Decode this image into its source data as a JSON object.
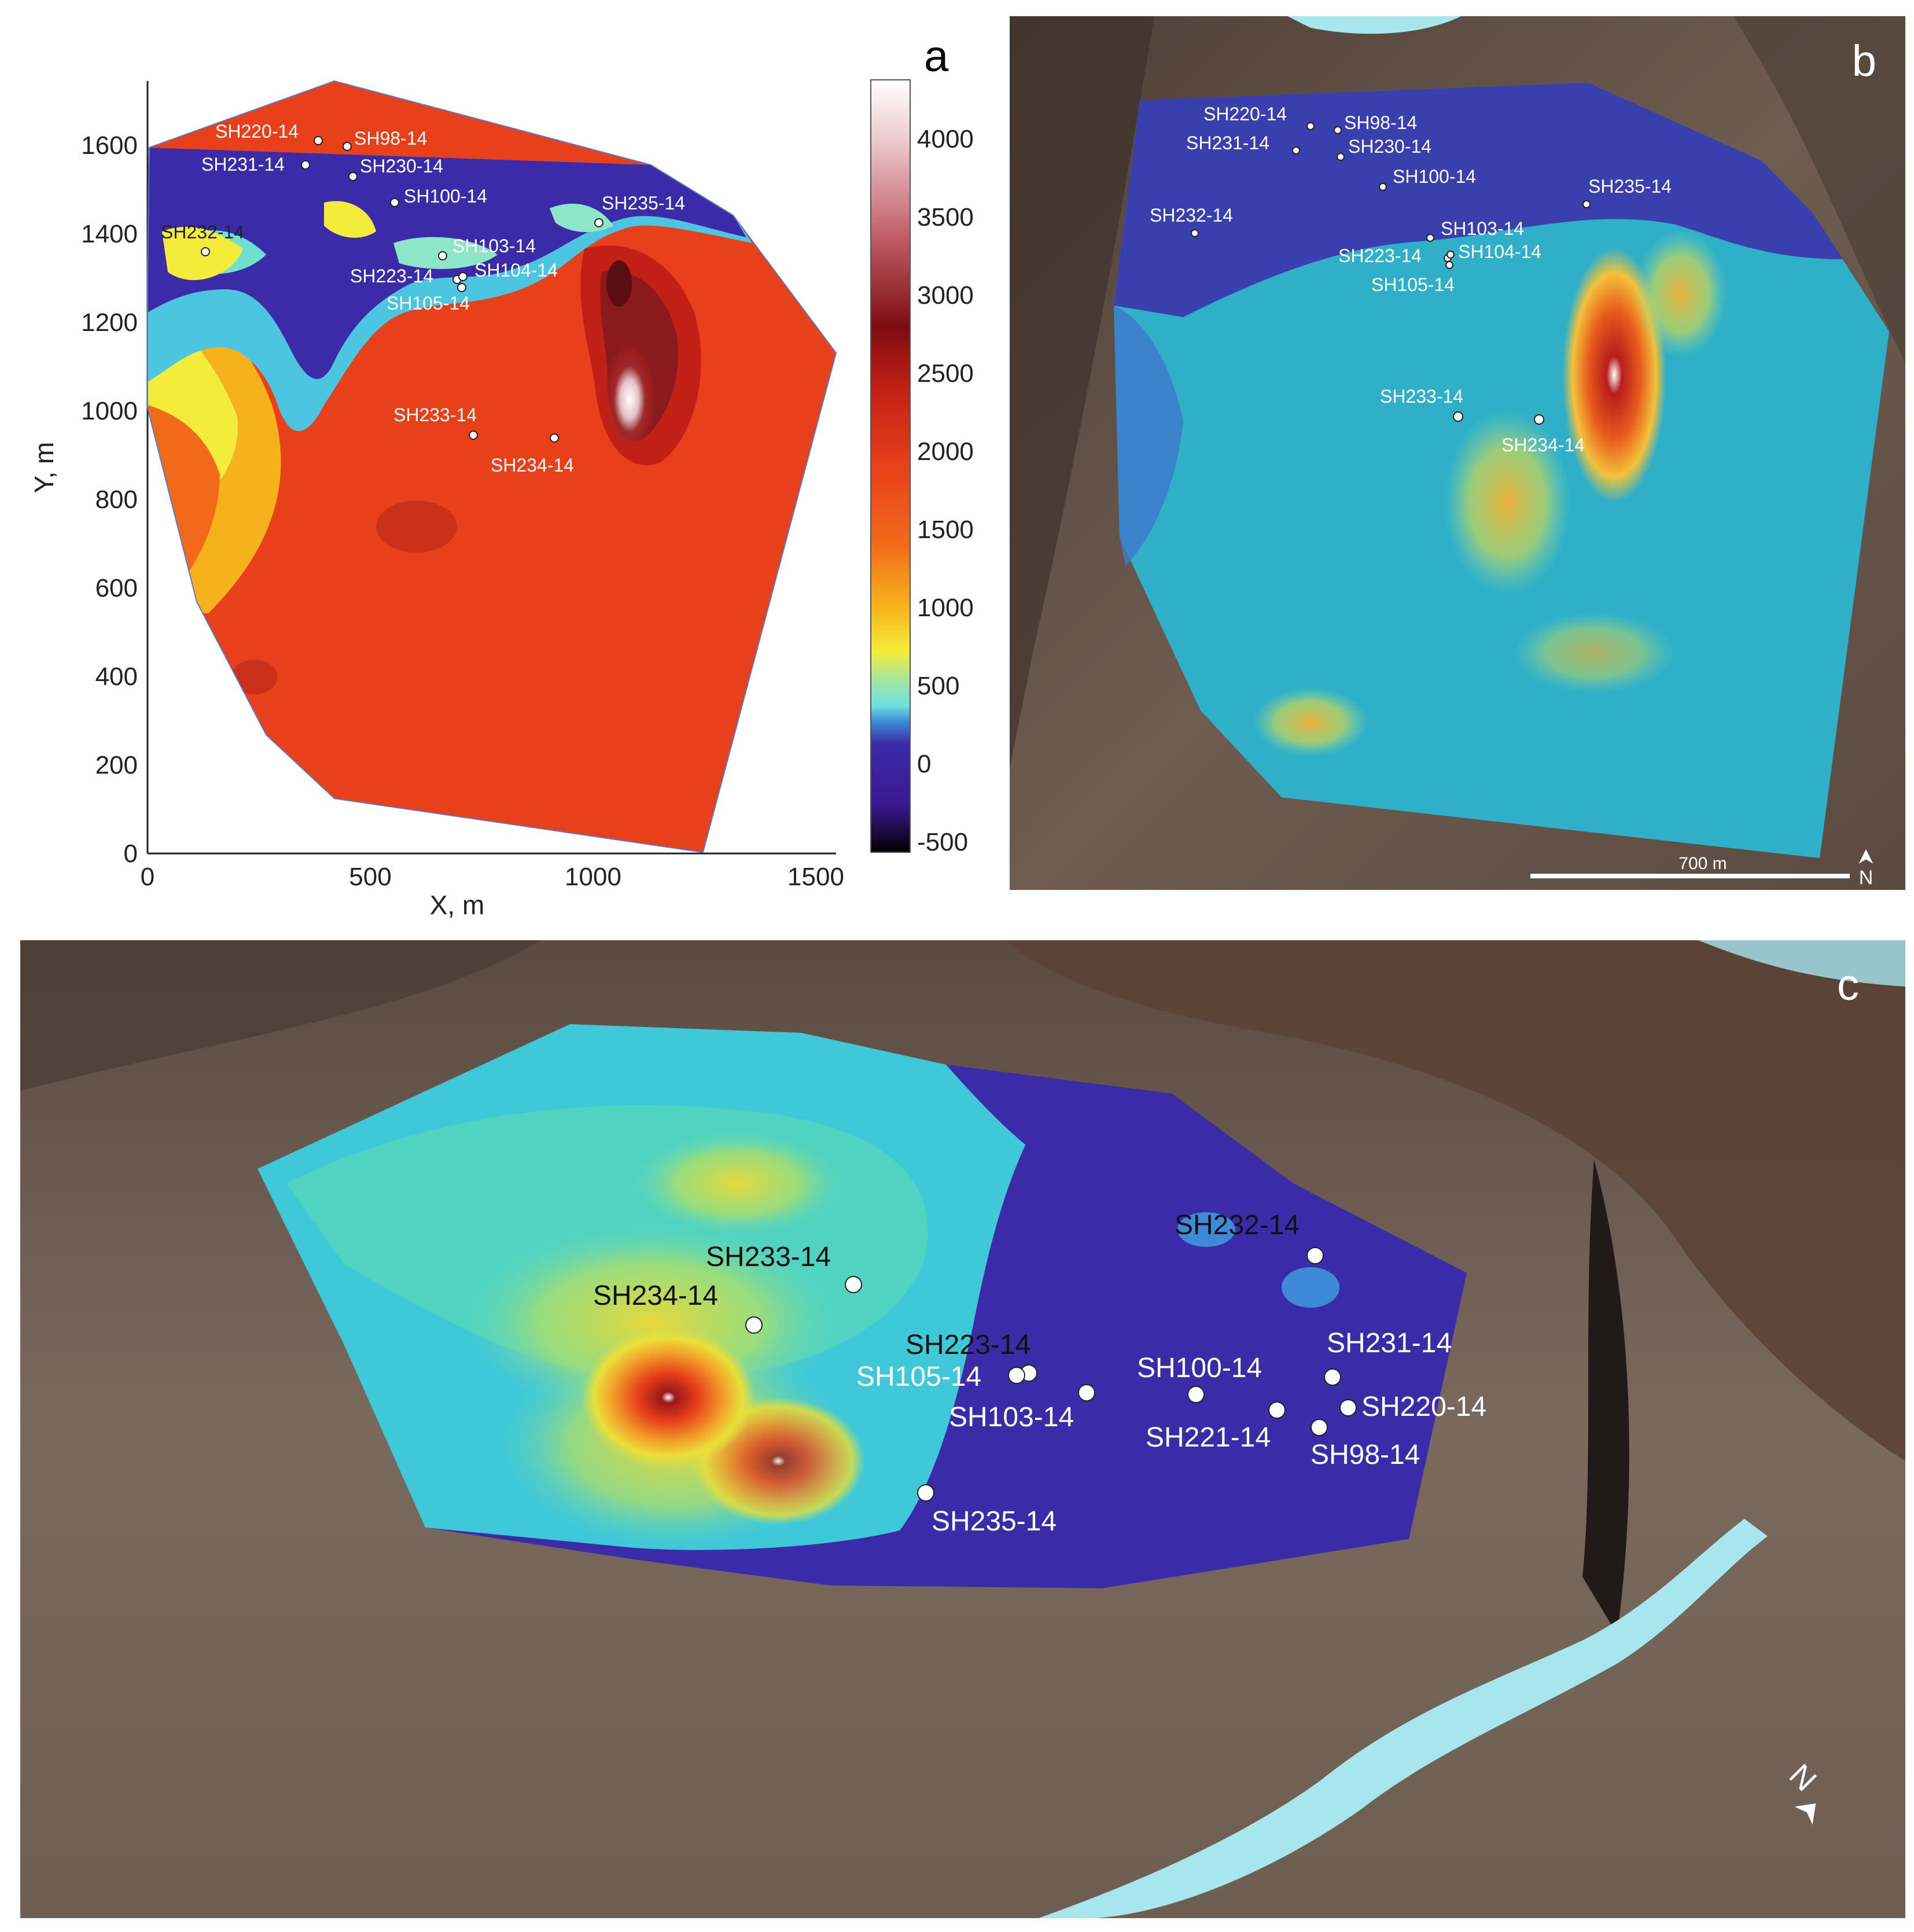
{
  "panels": {
    "a": {
      "letter": "a"
    },
    "b": {
      "letter": "b"
    },
    "c": {
      "letter": "c"
    }
  },
  "panel_a": {
    "xlabel": "X, m",
    "ylabel": "Y, m",
    "x_ticks": [
      "0",
      "500",
      "1000",
      "1500"
    ],
    "y_ticks": [
      "0",
      "200",
      "400",
      "600",
      "800",
      "1000",
      "1200",
      "1400",
      "1600"
    ],
    "colorbar_ticks": [
      "4000",
      "3500",
      "3000",
      "2500",
      "2000",
      "1500",
      "1000",
      "500",
      "0",
      "-500"
    ],
    "wells": [
      {
        "label": "SH220-14"
      },
      {
        "label": "SH98-14"
      },
      {
        "label": "SH231-14"
      },
      {
        "label": "SH230-14"
      },
      {
        "label": "SH100-14"
      },
      {
        "label": "SH235-14"
      },
      {
        "label": "SH232-14"
      },
      {
        "label": "SH103-14"
      },
      {
        "label": "SH223-14"
      },
      {
        "label": "SH104-14"
      },
      {
        "label": "SH105-14"
      },
      {
        "label": "SH233-14"
      },
      {
        "label": "SH234-14"
      }
    ]
  },
  "panel_b": {
    "wells": [
      {
        "label": "SH220-14"
      },
      {
        "label": "SH98-14"
      },
      {
        "label": "SH231-14"
      },
      {
        "label": "SH230-14"
      },
      {
        "label": "SH100-14"
      },
      {
        "label": "SH235-14"
      },
      {
        "label": "SH232-14"
      },
      {
        "label": "SH103-14"
      },
      {
        "label": "SH223-14"
      },
      {
        "label": "SH104-14"
      },
      {
        "label": "SH105-14"
      },
      {
        "label": "SH233-14"
      },
      {
        "label": "SH234-14"
      }
    ],
    "scale_label": "700 m",
    "north_label": "N"
  },
  "panel_c": {
    "wells": [
      {
        "label": "SH233-14"
      },
      {
        "label": "SH232-14"
      },
      {
        "label": "SH234-14"
      },
      {
        "label": "SH223-14"
      },
      {
        "label": "SH105-14"
      },
      {
        "label": "SH100-14"
      },
      {
        "label": "SH231-14"
      },
      {
        "label": "SH103-14"
      },
      {
        "label": "SH220-14"
      },
      {
        "label": "SH221-14"
      },
      {
        "label": "SH98-14"
      },
      {
        "label": "SH235-14"
      }
    ],
    "north_label": "N"
  },
  "colors": {
    "deep_purple": "#3b1fa0",
    "cyan": "#3fd0d8",
    "yellow": "#f2e23a",
    "orange": "#f08a1c",
    "red": "#e8401a",
    "dark_red": "#9c1818",
    "terrain": "#6a5a4e",
    "river": "#a8e6ee"
  }
}
